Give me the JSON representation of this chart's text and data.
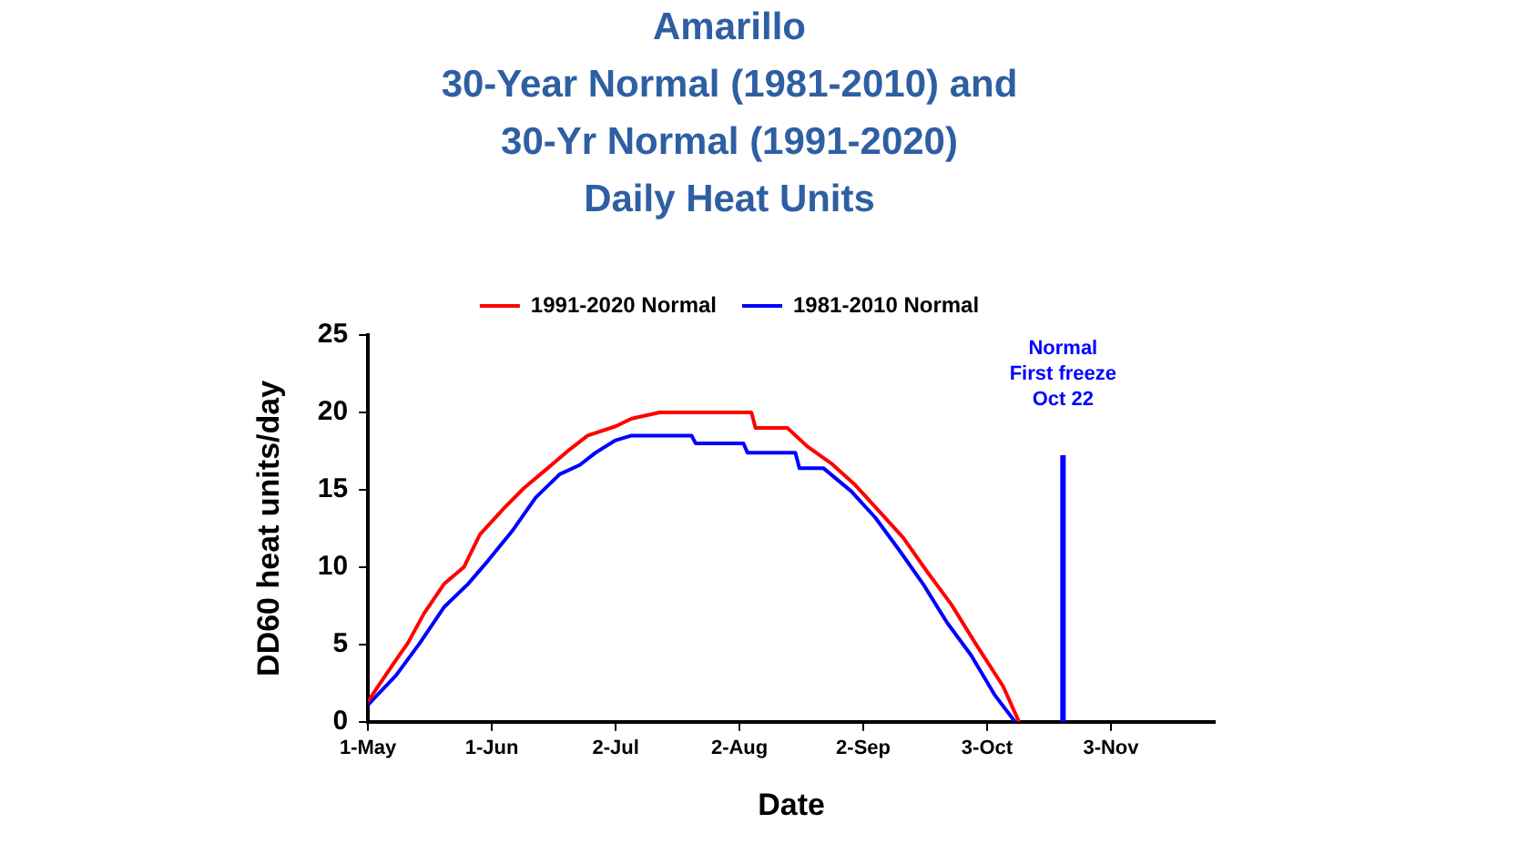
{
  "chart_data": {
    "type": "line",
    "title": "Amarillo\n30-Year Normal (1981-2010) and\n30-Yr Normal (1991-2020)\nDaily Heat Units",
    "xlabel": "Date",
    "ylabel": "DD60 heat units/day",
    "xlim": [
      "--05-01",
      "--11-29"
    ],
    "xticks": [
      {
        "value": "--05-01",
        "label": "1-May"
      },
      {
        "value": "--06-01",
        "label": "1-Jun"
      },
      {
        "value": "--07-02",
        "label": "2-Jul"
      },
      {
        "value": "--08-02",
        "label": "2-Aug"
      },
      {
        "value": "--09-02",
        "label": "2-Sep"
      },
      {
        "value": "--10-03",
        "label": "3-Oct"
      },
      {
        "value": "--11-03",
        "label": "3-Nov"
      }
    ],
    "ylim": [
      0,
      25
    ],
    "yticks": [
      0,
      5,
      10,
      15,
      20,
      25
    ],
    "grid": false,
    "legend": "top",
    "marker": "none",
    "line_style": "solid",
    "series": [
      {
        "name": "1991-2020 Normal",
        "color": "#ff0000",
        "x": [
          "--05-01",
          "--05-03",
          "--05-08",
          "--05-11",
          "--05-15",
          "--05-20",
          "--05-25",
          "--05-29",
          "--06-04",
          "--06-09",
          "--06-15",
          "--06-20",
          "--06-25",
          "--07-02",
          "--07-06",
          "--07-13",
          "--08-05",
          "--08-06",
          "--08-14",
          "--08-19",
          "--08-25",
          "--08-31",
          "--09-06",
          "--09-12",
          "--09-18",
          "--09-24",
          "--09-30",
          "--10-07",
          "--10-11"
        ],
        "values": [
          1.3,
          2.1,
          4,
          5.1,
          7,
          8.9,
          10,
          12.1,
          13.8,
          15.1,
          16.4,
          17.5,
          18.5,
          19.1,
          19.6,
          20,
          20,
          19,
          19,
          17.8,
          16.7,
          15.3,
          13.6,
          11.9,
          9.7,
          7.6,
          5.1,
          2.3,
          0
        ]
      },
      {
        "name": "1981-2010 Normal",
        "color": "#0000ff",
        "x": [
          "--05-01",
          "--05-08",
          "--05-14",
          "--05-20",
          "--05-26",
          "--05-31",
          "--06-06",
          "--06-12",
          "--06-18",
          "--06-23",
          "--06-27",
          "--07-02",
          "--07-06",
          "--07-21",
          "--07-22",
          "--08-03",
          "--08-04",
          "--08-16",
          "--08-17",
          "--08-23",
          "--08-30",
          "--09-05",
          "--09-11",
          "--09-17",
          "--09-23",
          "--09-29",
          "--10-05",
          "--10-10"
        ],
        "values": [
          1.1,
          3,
          5.1,
          7.4,
          8.9,
          10.4,
          12.3,
          14.5,
          16,
          16.6,
          17.4,
          18.2,
          18.5,
          18.5,
          18,
          18,
          17.4,
          17.4,
          16.4,
          16.4,
          14.9,
          13.2,
          11.1,
          8.9,
          6.4,
          4.3,
          1.7,
          0
        ]
      }
    ],
    "ref_lines": [
      {
        "axis": "x",
        "value": "--10-22",
        "label": "Normal\nFirst freeze\nOct 22",
        "color": "#0000ff"
      }
    ]
  }
}
